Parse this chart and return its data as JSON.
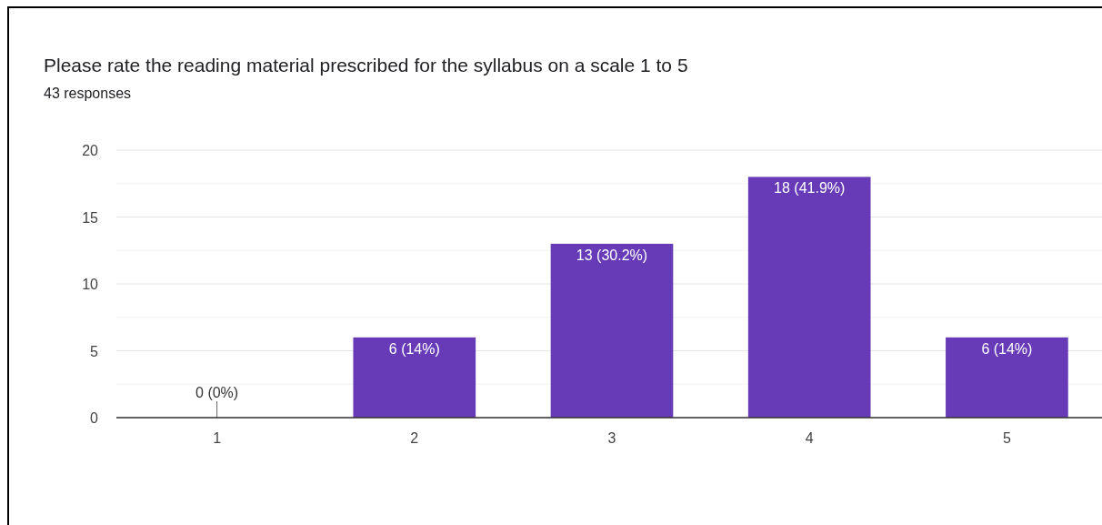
{
  "chart_data": {
    "type": "bar",
    "title": "Please rate the reading material prescribed for the syllabus on a scale 1 to 5",
    "subtitle": "43 responses",
    "categories": [
      "1",
      "2",
      "3",
      "4",
      "5"
    ],
    "values": [
      0,
      6,
      13,
      18,
      6
    ],
    "value_labels": [
      "0 (0%)",
      "6 (14%)",
      "13 (30.2%)",
      "18 (41.9%)",
      "6 (14%)"
    ],
    "color": "#673ab7",
    "ylim": [
      0,
      20
    ],
    "yticks": [
      0,
      {
        "value": 2.5,
        "label": null
      },
      5,
      {
        "value": 7.5,
        "label": null
      },
      10,
      {
        "value": 12.5,
        "label": null
      },
      15,
      {
        "value": 17.5,
        "label": null
      },
      20
    ],
    "grid": "y"
  }
}
